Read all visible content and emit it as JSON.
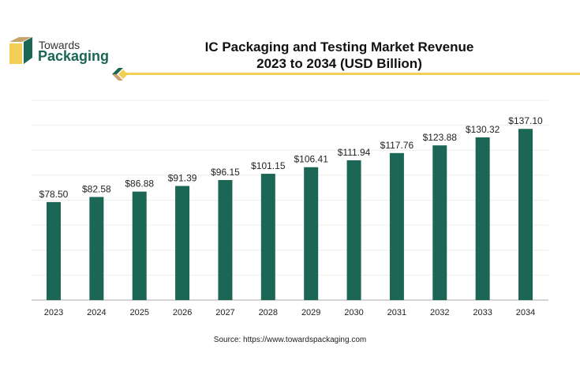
{
  "brand": {
    "line1": "Towards",
    "line2": "Packaging",
    "colors": {
      "green": "#1b6654",
      "gold": "#f3cf55",
      "tan": "#c9a46a"
    }
  },
  "chart_data": {
    "type": "bar",
    "title": "IC Packaging and Testing Market Revenue",
    "subtitle": "2023 to 2034 (USD Billion)",
    "categories": [
      "2023",
      "2024",
      "2025",
      "2026",
      "2027",
      "2028",
      "2029",
      "2030",
      "2031",
      "2032",
      "2033",
      "2034"
    ],
    "values": [
      78.5,
      82.58,
      86.88,
      91.39,
      96.15,
      101.15,
      106.41,
      111.94,
      117.76,
      123.88,
      130.32,
      137.1
    ],
    "data_labels": [
      "$78.50",
      "$82.58",
      "$86.88",
      "$91.39",
      "$96.15",
      "$101.15",
      "$106.41",
      "$111.94",
      "$117.76",
      "$123.88",
      "$130.32",
      "$137.10"
    ],
    "ylim": [
      0,
      160
    ],
    "grid": true,
    "bar_color": "#1b6654",
    "xlabel": "",
    "ylabel": ""
  },
  "source": "Source: https://www.towardspackaging.com"
}
